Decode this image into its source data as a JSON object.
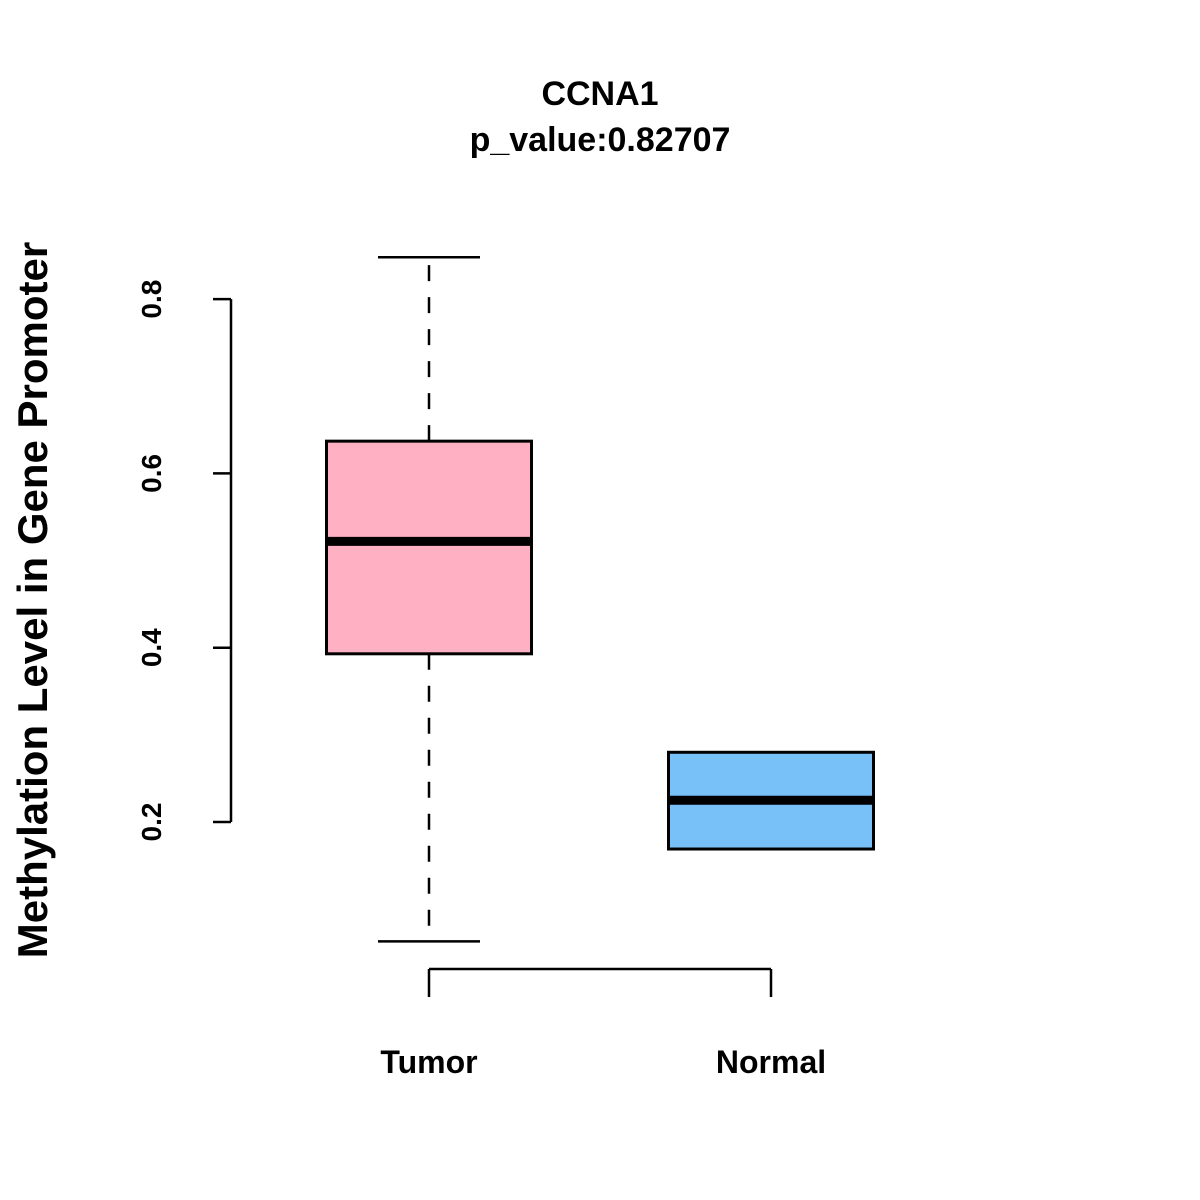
{
  "chart_data": {
    "type": "boxplot",
    "title": "CCNA1",
    "subtitle": "p_value:0.82707",
    "xlabel": "",
    "ylabel": "Methylation Level in Gene Promoter",
    "ylim": [
      0.035,
      0.88
    ],
    "yticks": [
      0.2,
      0.4,
      0.6,
      0.8
    ],
    "ytick_labels": [
      "0.2",
      "0.4",
      "0.6",
      "0.8"
    ],
    "grid": false,
    "categories": [
      "Tumor",
      "Normal"
    ],
    "boxes": [
      {
        "name": "Tumor",
        "min": 0.063,
        "q1": 0.393,
        "median": 0.522,
        "q3": 0.637,
        "max": 0.848,
        "color": "#FFB1C3"
      },
      {
        "name": "Normal",
        "min": 0.169,
        "q1": 0.169,
        "median": 0.225,
        "q3": 0.28,
        "max": 0.28,
        "color": "#78C1F8"
      }
    ]
  }
}
